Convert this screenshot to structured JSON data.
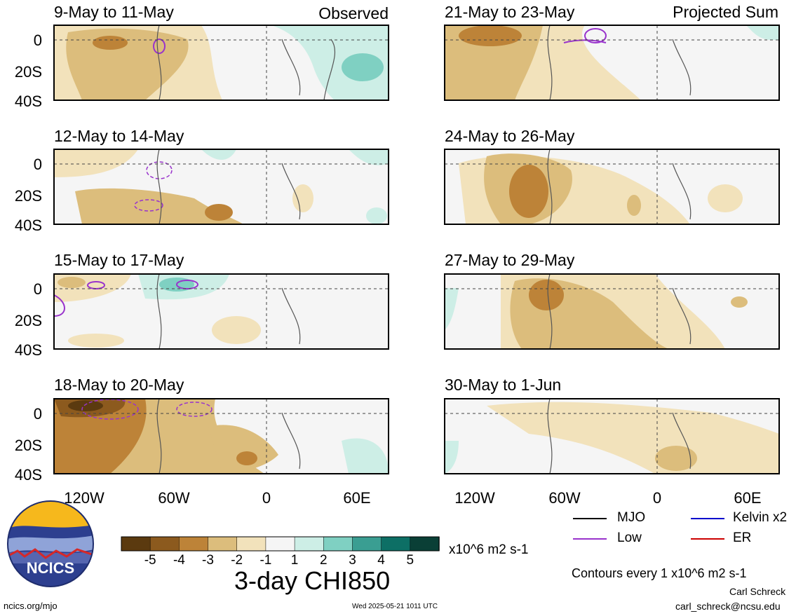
{
  "left_header": "Observed",
  "right_header": "Projected Sum",
  "panels": [
    {
      "title": "9-May to 11-May"
    },
    {
      "title": "12-May to 14-May"
    },
    {
      "title": "15-May to 17-May"
    },
    {
      "title": "18-May to 20-May"
    },
    {
      "title": "21-May to 23-May"
    },
    {
      "title": "24-May to 26-May"
    },
    {
      "title": "27-May to 29-May"
    },
    {
      "title": "30-May to 1-Jun"
    }
  ],
  "y_ticks": [
    "0",
    "20S",
    "40S"
  ],
  "x_ticks": [
    "120W",
    "60W",
    "0",
    "60E"
  ],
  "colorbar": {
    "labels": [
      "-5",
      "-4",
      "-3",
      "-2",
      "-1",
      "1",
      "2",
      "3",
      "4",
      "5"
    ],
    "colors": [
      "#5b3a0f",
      "#8c5a1e",
      "#bd8338",
      "#dcbd7c",
      "#f2e2bb",
      "#f5f5f5",
      "#cdeee6",
      "#7fd0c2",
      "#3a9e92",
      "#0d6f65",
      "#0a3f36"
    ],
    "units": "x10^6 m2 s-1"
  },
  "main_title": "3-day CHI850",
  "logo_text": "NCICS",
  "footer": {
    "url": "ncics.org/mjo",
    "timestamp": "Wed 2025-05-21 1011 UTC",
    "author": "Carl Schreck",
    "email": "carl_schreck@ncsu.edu"
  },
  "contour_note": "Contours every 1 x10^6 m2 s-1",
  "legend": [
    {
      "label": "MJO",
      "color": "#000000"
    },
    {
      "label": "Kelvin x2",
      "color": "#0000cc"
    },
    {
      "label": "Low",
      "color": "#9933cc"
    },
    {
      "label": "ER",
      "color": "#cc0000"
    }
  ]
}
